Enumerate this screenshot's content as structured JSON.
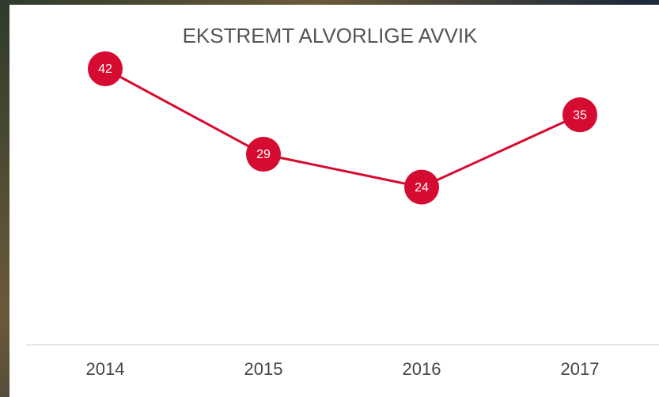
{
  "chart_data": {
    "type": "line",
    "title": "EKSTREMT ALVORLIGE AVVIK",
    "categories": [
      "2014",
      "2015",
      "2016",
      "2017"
    ],
    "values": [
      42,
      29,
      24,
      35
    ],
    "color": "#d50b31"
  }
}
